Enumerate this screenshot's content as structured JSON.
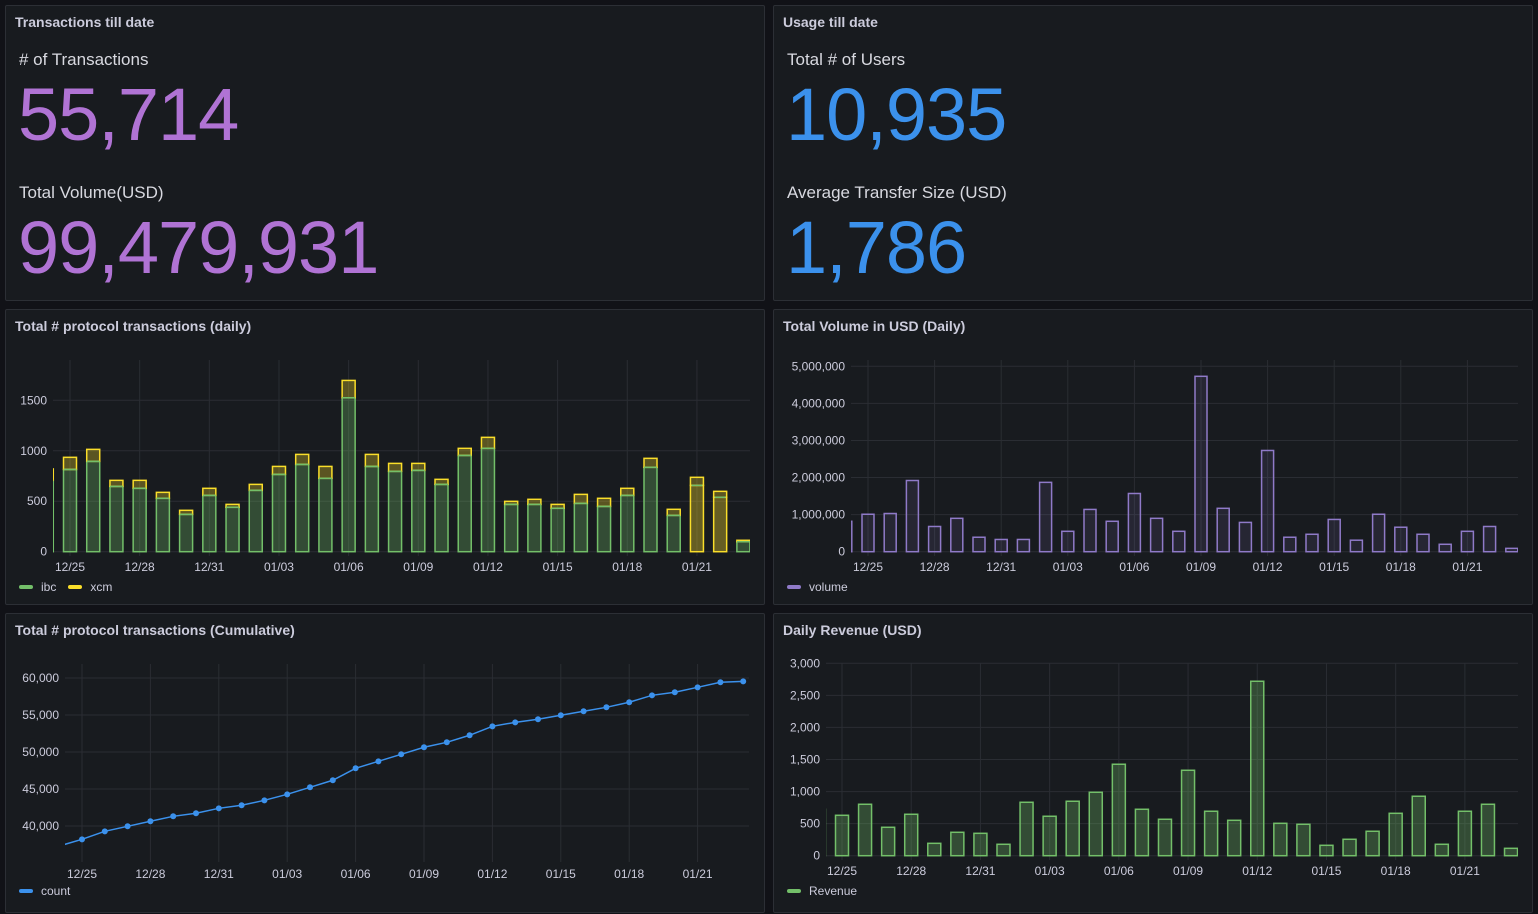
{
  "panels": {
    "transactions": {
      "title": "Transactions till date",
      "stats": [
        {
          "label": "# of Transactions",
          "value": "55,714"
        },
        {
          "label": "Total Volume(USD)",
          "value": "99,479,931"
        }
      ]
    },
    "usage": {
      "title": "Usage till date",
      "stats": [
        {
          "label": "Total # of Users",
          "value": "10,935"
        },
        {
          "label": "Average Transfer Size (USD)",
          "value": "1,786"
        }
      ]
    },
    "daily_tx": {
      "title": "Total # protocol transactions (daily)",
      "legend": [
        {
          "name": "ibc",
          "color": "#73bf69"
        },
        {
          "name": "xcm",
          "color": "#fade2a"
        }
      ]
    },
    "volume": {
      "title": "Total Volume in USD (Daily)",
      "legend": [
        {
          "name": "volume",
          "color": "#8f7ac8"
        }
      ]
    },
    "cumulative": {
      "title": "Total # protocol transactions (Cumulative)",
      "legend": [
        {
          "name": "count",
          "color": "#3b91ec"
        }
      ]
    },
    "revenue": {
      "title": "Daily Revenue (USD)",
      "legend": [
        {
          "name": "Revenue",
          "color": "#73bf69"
        }
      ]
    }
  },
  "colors": {
    "purple": "#b073d4",
    "blue": "#3b91ec",
    "green": "#73bf69",
    "yellow": "#fade2a",
    "violet": "#8f7ac8"
  },
  "chart_data": [
    {
      "id": "daily_tx",
      "type": "bar",
      "stacked": true,
      "title": "Total # protocol transactions (daily)",
      "x": [
        "12/24",
        "12/25",
        "12/26",
        "12/27",
        "12/28",
        "12/29",
        "12/30",
        "12/31",
        "01/01",
        "01/02",
        "01/03",
        "01/04",
        "01/05",
        "01/06",
        "01/07",
        "01/08",
        "01/09",
        "01/10",
        "01/11",
        "01/12",
        "01/13",
        "01/14",
        "01/15",
        "01/16",
        "01/17",
        "01/18",
        "01/19",
        "01/20",
        "01/21",
        "01/22",
        "01/23"
      ],
      "xticks": [
        "12/25",
        "12/28",
        "12/31",
        "01/03",
        "01/06",
        "01/09",
        "01/12",
        "01/15",
        "01/18",
        "01/21"
      ],
      "series": [
        {
          "name": "ibc",
          "values": [
            707,
            815,
            895,
            647,
            628,
            529,
            370,
            558,
            440,
            608,
            766,
            865,
            727,
            1525,
            845,
            796,
            806,
            667,
            954,
            1024,
            469,
            469,
            430,
            479,
            449,
            558,
            836,
            360,
            657,
            539,
            99
          ]
        },
        {
          "name": "xcm",
          "values": [
            113,
            120,
            119,
            60,
            79,
            59,
            40,
            70,
            29,
            59,
            79,
            99,
            118,
            172,
            119,
            79,
            69,
            50,
            70,
            109,
            30,
            50,
            39,
            89,
            80,
            70,
            89,
            60,
            80,
            59,
            14
          ]
        }
      ],
      "highlighted": [
        "01/21",
        "01/22"
      ],
      "yticks": [
        0,
        500,
        1000,
        1500
      ],
      "ylim": [
        0,
        1900
      ],
      "legend": "bottom-left",
      "grid": true
    },
    {
      "id": "volume",
      "type": "bar",
      "title": "Total Volume in USD (Daily)",
      "x": [
        "12/24",
        "12/25",
        "12/26",
        "12/27",
        "12/28",
        "12/29",
        "12/30",
        "12/31",
        "01/01",
        "01/02",
        "01/03",
        "01/04",
        "01/05",
        "01/06",
        "01/07",
        "01/08",
        "01/09",
        "01/10",
        "01/11",
        "01/12",
        "01/13",
        "01/14",
        "01/15",
        "01/16",
        "01/17",
        "01/18",
        "01/19",
        "01/20",
        "01/21",
        "01/22",
        "01/23"
      ],
      "xticks": [
        "12/25",
        "12/28",
        "12/31",
        "01/03",
        "01/06",
        "01/09",
        "01/12",
        "01/15",
        "01/18",
        "01/21"
      ],
      "series": [
        {
          "name": "volume",
          "values": [
            820000,
            1010000,
            1030000,
            1920000,
            680000,
            900000,
            390000,
            330000,
            330000,
            1870000,
            550000,
            1140000,
            820000,
            1570000,
            900000,
            550000,
            4730000,
            1170000,
            790000,
            2730000,
            390000,
            470000,
            870000,
            310000,
            1010000,
            660000,
            470000,
            200000,
            550000,
            680000,
            90000
          ]
        }
      ],
      "yticks": [
        "0",
        "1,000,000",
        "2,000,000",
        "3,000,000",
        "4,000,000",
        "5,000,000"
      ],
      "ylim": [
        0,
        5000000
      ],
      "legend": "bottom-left",
      "grid": true
    },
    {
      "id": "cumulative",
      "type": "line",
      "title": "Total # protocol transactions (Cumulative)",
      "x": [
        "12/24",
        "12/25",
        "12/26",
        "12/27",
        "12/28",
        "12/29",
        "12/30",
        "12/31",
        "01/01",
        "01/02",
        "01/03",
        "01/04",
        "01/05",
        "01/06",
        "01/07",
        "01/08",
        "01/09",
        "01/10",
        "01/11",
        "01/12",
        "01/13",
        "01/14",
        "01/15",
        "01/16",
        "01/17",
        "01/18",
        "01/19",
        "01/20",
        "01/21",
        "01/22",
        "01/23"
      ],
      "xticks": [
        "12/25",
        "12/28",
        "12/31",
        "01/03",
        "01/06",
        "01/09",
        "01/12",
        "01/15",
        "01/18",
        "01/21"
      ],
      "series": [
        {
          "name": "count",
          "values": [
            37300,
            38200,
            39280,
            39960,
            40640,
            41310,
            41720,
            42390,
            42800,
            43470,
            44280,
            45230,
            46180,
            47800,
            48740,
            49690,
            50640,
            51310,
            52260,
            53470,
            54010,
            54420,
            54960,
            55500,
            56040,
            56720,
            57660,
            58070,
            58740,
            59420,
            59550
          ]
        }
      ],
      "yticks": [
        "40,000",
        "45,000",
        "50,000",
        "55,000",
        "60,000"
      ],
      "ylim": [
        35000,
        62000
      ],
      "legend": "bottom-left",
      "grid": true
    },
    {
      "id": "revenue",
      "type": "bar",
      "title": "Daily Revenue (USD)",
      "x": [
        "12/24",
        "12/25",
        "12/26",
        "12/27",
        "12/28",
        "12/29",
        "12/30",
        "12/31",
        "01/01",
        "01/02",
        "01/03",
        "01/04",
        "01/05",
        "01/06",
        "01/07",
        "01/08",
        "01/09",
        "01/10",
        "01/11",
        "01/12",
        "01/13",
        "01/14",
        "01/15",
        "01/16",
        "01/17",
        "01/18",
        "01/19",
        "01/20",
        "01/21",
        "01/22",
        "01/23"
      ],
      "xticks": [
        "12/25",
        "12/28",
        "12/31",
        "01/03",
        "01/06",
        "01/09",
        "01/12",
        "01/15",
        "01/18",
        "01/21"
      ],
      "series": [
        {
          "name": "Revenue",
          "values": [
            724,
            630,
            802,
            443,
            646,
            193,
            365,
            349,
            178,
            833,
            615,
            849,
            989,
            1426,
            724,
            568,
            1332,
            693,
            552,
            2720,
            505,
            490,
            162,
            256,
            381,
            661,
            927,
            178,
            693,
            802,
            115
          ]
        }
      ],
      "yticks": [
        "0",
        "500",
        "1,000",
        "1,500",
        "2,000",
        "2,500",
        "3,000"
      ],
      "ylim": [
        0,
        3000
      ],
      "legend": "bottom-left",
      "grid": true
    }
  ]
}
